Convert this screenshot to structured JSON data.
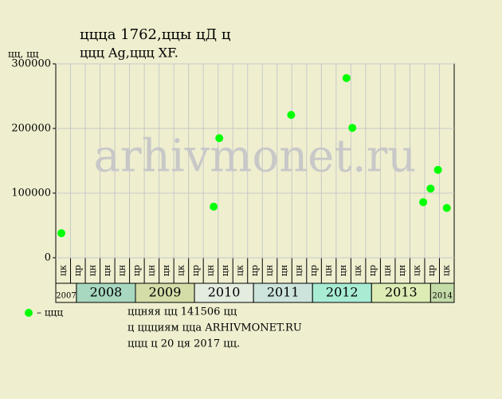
{
  "chart_data": {
    "type": "scatter",
    "title": [
      "ццца 1762,ццы цД ц",
      "ццц Ag,ццц XF."
    ],
    "y_label": "цц, цц",
    "watermark": "arhivmonet.ru",
    "months": [
      "цк",
      "цр",
      "цн",
      "цн",
      "цн",
      "цр",
      "цн",
      "цн",
      "цк",
      "цр",
      "цн",
      "цн",
      "цк",
      "цр",
      "цн",
      "цн",
      "цн",
      "цр",
      "цн",
      "цн",
      "цк",
      "цр",
      "цн",
      "цн",
      "цк",
      "цр",
      "цк"
    ],
    "years": [
      "2007",
      "2008",
      "2009",
      "2010",
      "2011",
      "2012",
      "2013",
      "2014"
    ],
    "series": [
      {
        "name": "– ццц",
        "color": "#00ff00",
        "x": [
          0.38,
          10.7,
          11.08,
          15.95,
          19.7,
          20.1,
          24.9,
          25.4,
          25.9,
          26.5
        ],
        "values": [
          38000,
          79000,
          185000,
          221000,
          278000,
          201000,
          86000,
          107000,
          136000,
          77000
        ]
      }
    ],
    "xlim": [
      0,
      27
    ],
    "ylim": [
      0,
      300000
    ],
    "yticks": [
      0,
      100000,
      200000,
      300000
    ],
    "grid": true,
    "notes": [
      "ццняя цц 141506 цц",
      "ц ццциям ццa ARHIVMONET.RU",
      "ццц ц 20 ця 2017 цц."
    ]
  }
}
